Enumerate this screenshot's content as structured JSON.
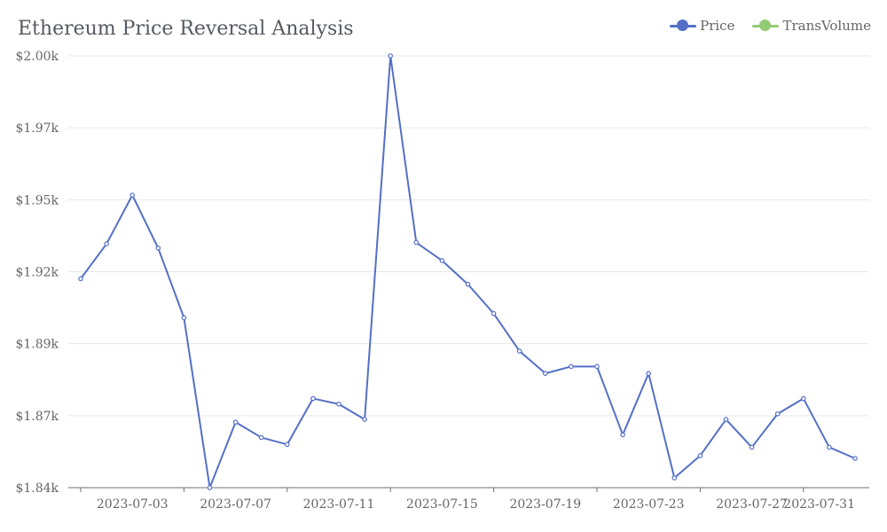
{
  "chart_data": {
    "type": "line",
    "title": "Ethereum Price Reversal Analysis",
    "legend": [
      {
        "name": "Price",
        "color": "#5470c6"
      },
      {
        "name": "TransVolume",
        "color": "#91cc75"
      }
    ],
    "legend_position": "top-right",
    "grid": true,
    "y_ticks": [
      "$1.84k",
      "$1.87k",
      "$1.89k",
      "$1.92k",
      "$1.95k",
      "$1.97k",
      "$2.00k"
    ],
    "ylim": [
      1845,
      2000
    ],
    "x_ticks": [
      "2023-07-03",
      "2023-07-07",
      "2023-07-11",
      "2023-07-15",
      "2023-07-19",
      "2023-07-23",
      "2023-07-27",
      "2023-07-31"
    ],
    "x_dates": [
      "2023-07-01",
      "2023-07-02",
      "2023-07-03",
      "2023-07-04",
      "2023-07-05",
      "2023-07-06",
      "2023-07-07",
      "2023-07-08",
      "2023-07-09",
      "2023-07-10",
      "2023-07-11",
      "2023-07-12",
      "2023-07-13",
      "2023-07-14",
      "2023-07-15",
      "2023-07-16",
      "2023-07-17",
      "2023-07-18",
      "2023-07-19",
      "2023-07-20",
      "2023-07-21",
      "2023-07-22",
      "2023-07-23",
      "2023-07-24",
      "2023-07-25",
      "2023-07-26",
      "2023-07-27",
      "2023-07-28",
      "2023-07-29",
      "2023-07-30",
      "2023-07-31"
    ],
    "series": [
      {
        "name": "Price",
        "color": "#5470c6",
        "values": [
          1920,
          1932.5,
          1950,
          1931,
          1906,
          1845,
          1868.5,
          1863,
          1860.5,
          1877,
          1875,
          1869.5,
          2000,
          1933,
          1926.5,
          1918,
          1907.5,
          1894,
          1886,
          1888.5,
          1888.5,
          1864,
          1886,
          1848.5,
          1856.5,
          1869.5,
          1859.5,
          1871.5,
          1877,
          1859.5,
          1855.5
        ]
      }
    ]
  }
}
